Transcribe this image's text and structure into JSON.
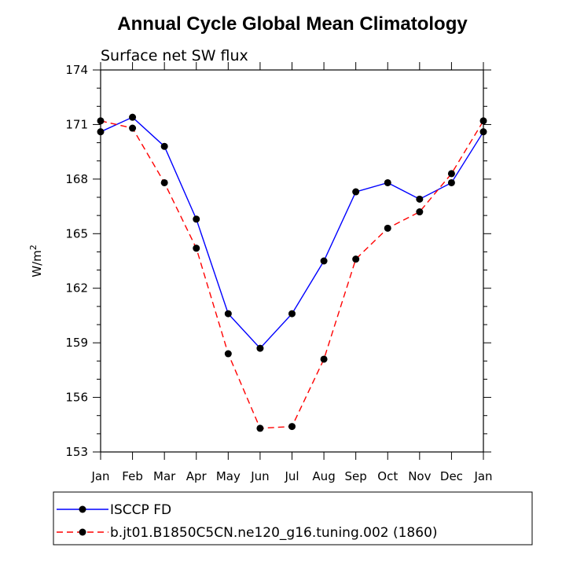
{
  "chart_data": {
    "type": "line",
    "title": "Annual Cycle Global Mean Climatology",
    "subtitle": "Surface net SW flux",
    "ylabel": "W/m",
    "ylabel_superscript": "2",
    "xlabel": "",
    "categories": [
      "Jan",
      "Feb",
      "Mar",
      "Apr",
      "May",
      "Jun",
      "Jul",
      "Aug",
      "Sep",
      "Oct",
      "Nov",
      "Dec",
      "Jan"
    ],
    "ylim": [
      153,
      174
    ],
    "yticks": [
      153,
      156,
      159,
      162,
      165,
      168,
      171,
      174
    ],
    "series": [
      {
        "name": "ISCCP FD",
        "color": "#0000ff",
        "style": "solid",
        "values": [
          170.6,
          171.4,
          169.8,
          165.8,
          160.6,
          158.7,
          160.6,
          163.5,
          167.3,
          167.8,
          166.9,
          167.8,
          170.6
        ]
      },
      {
        "name": "b.jt01.B1850C5CN.ne120_g16.tuning.002 (1860)",
        "color": "#ff0000",
        "style": "dashed",
        "values": [
          171.2,
          170.8,
          167.8,
          164.2,
          158.4,
          154.3,
          154.4,
          158.1,
          163.6,
          165.3,
          166.2,
          168.3,
          171.2
        ]
      }
    ],
    "legend": "bottom"
  }
}
